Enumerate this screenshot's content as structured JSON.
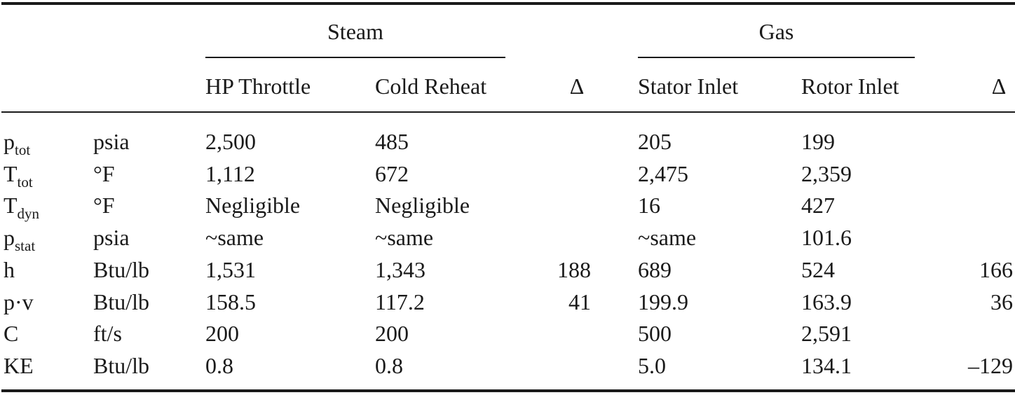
{
  "table": {
    "groups": [
      "Steam",
      "Gas"
    ],
    "columns": [
      "HP Throttle",
      "Cold Reheat",
      "Δ",
      "Stator Inlet",
      "Rotor Inlet",
      "Δ"
    ],
    "rows": [
      {
        "symbol": "p",
        "sub": "tot",
        "unit": "psia",
        "cells": [
          "2,500",
          "485",
          null,
          "205",
          "199",
          null
        ]
      },
      {
        "symbol": "T",
        "sub": "tot",
        "unit": "°F",
        "cells": [
          "1,112",
          "672",
          null,
          "2,475",
          "2,359",
          null
        ]
      },
      {
        "symbol": "T",
        "sub": "dyn",
        "unit": "°F",
        "cells": [
          "Negligible",
          "Negligible",
          null,
          "16",
          "427",
          null
        ]
      },
      {
        "symbol": "p",
        "sub": "stat",
        "unit": "psia",
        "cells": [
          "~same",
          "~same",
          null,
          "~same",
          "101.6",
          null
        ]
      },
      {
        "symbol": "h",
        "unit": "Btu/lb",
        "cells": [
          "1,531",
          "1,343",
          "188",
          "689",
          "524",
          "166"
        ]
      },
      {
        "symbol": "p·v",
        "unit": "Btu/lb",
        "cells": [
          "158.5",
          "117.2",
          "41",
          "199.9",
          "163.9",
          "36"
        ]
      },
      {
        "symbol": "C",
        "unit": "ft/s",
        "cells": [
          "200",
          "200",
          null,
          "500",
          "2,591",
          null
        ]
      },
      {
        "symbol": "KE",
        "unit": "Btu/lb",
        "cells": [
          "0.8",
          "0.8",
          null,
          "5.0",
          "134.1",
          "–129"
        ]
      }
    ]
  }
}
